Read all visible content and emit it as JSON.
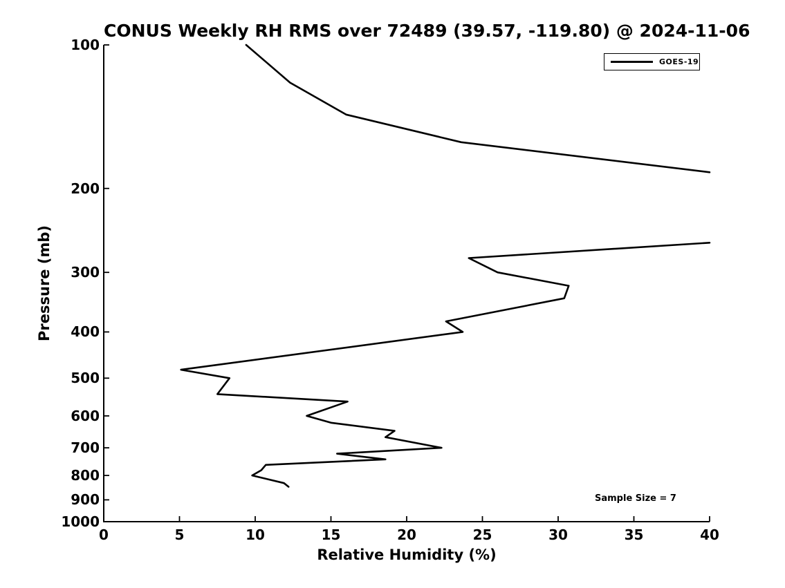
{
  "figure": {
    "title": "CONUS Weekly RH RMS over 72489 (39.57, -119.80) @ 2024-11-06",
    "xlabel": "Relative Humidity (%)",
    "ylabel": "Pressure (mb)",
    "legend": {
      "label": "GOES-19",
      "line_color": "#000000"
    },
    "annotation": "Sample Size = 7",
    "colors": {
      "line": "#000000",
      "text": "#000000",
      "background": "#ffffff"
    }
  },
  "chart_data": {
    "type": "line",
    "title": "CONUS Weekly RH RMS over 72489 (39.57, -119.80) @ 2024-11-06",
    "xlabel": "Relative Humidity (%)",
    "ylabel": "Pressure (mb)",
    "xlim": [
      0,
      40
    ],
    "ylim_pressure_mb": [
      1000,
      100
    ],
    "yscale": "log",
    "grid": false,
    "x_ticks": [
      0,
      5,
      10,
      15,
      20,
      25,
      30,
      35,
      40
    ],
    "y_ticks": [
      100,
      200,
      300,
      400,
      500,
      600,
      700,
      800,
      900,
      1000
    ],
    "legend_position": "upper right",
    "line_color": "#000000",
    "series": [
      {
        "name": "GOES-19",
        "gap_note": "profile exceeds 40% RH between ~185 mb and ~260 mb (line clipped at axis limit)",
        "segments_rh_pressure": [
          [
            [
              9.4,
              100
            ],
            [
              12.3,
              120
            ],
            [
              16.0,
              140
            ],
            [
              23.6,
              160
            ],
            [
              40.0,
              185
            ]
          ],
          [
            [
              40.0,
              260
            ],
            [
              24.1,
              280
            ],
            [
              26.0,
              300
            ],
            [
              30.7,
              320
            ],
            [
              30.4,
              340
            ],
            [
              22.6,
              380
            ],
            [
              23.7,
              400
            ],
            [
              5.1,
              480
            ],
            [
              8.3,
              500
            ],
            [
              7.5,
              540
            ],
            [
              16.1,
              560
            ],
            [
              13.4,
              600
            ],
            [
              15.0,
              620
            ],
            [
              19.2,
              645
            ],
            [
              18.6,
              665
            ],
            [
              22.3,
              700
            ],
            [
              15.4,
              720
            ],
            [
              18.6,
              740
            ],
            [
              10.7,
              760
            ],
            [
              10.4,
              780
            ],
            [
              9.8,
              800
            ],
            [
              11.9,
              830
            ],
            [
              12.2,
              845
            ]
          ]
        ]
      }
    ],
    "annotations": [
      {
        "text": "Sample Size = 7",
        "approx_rh": 32.5,
        "approx_pressure_mb": 895
      }
    ]
  }
}
